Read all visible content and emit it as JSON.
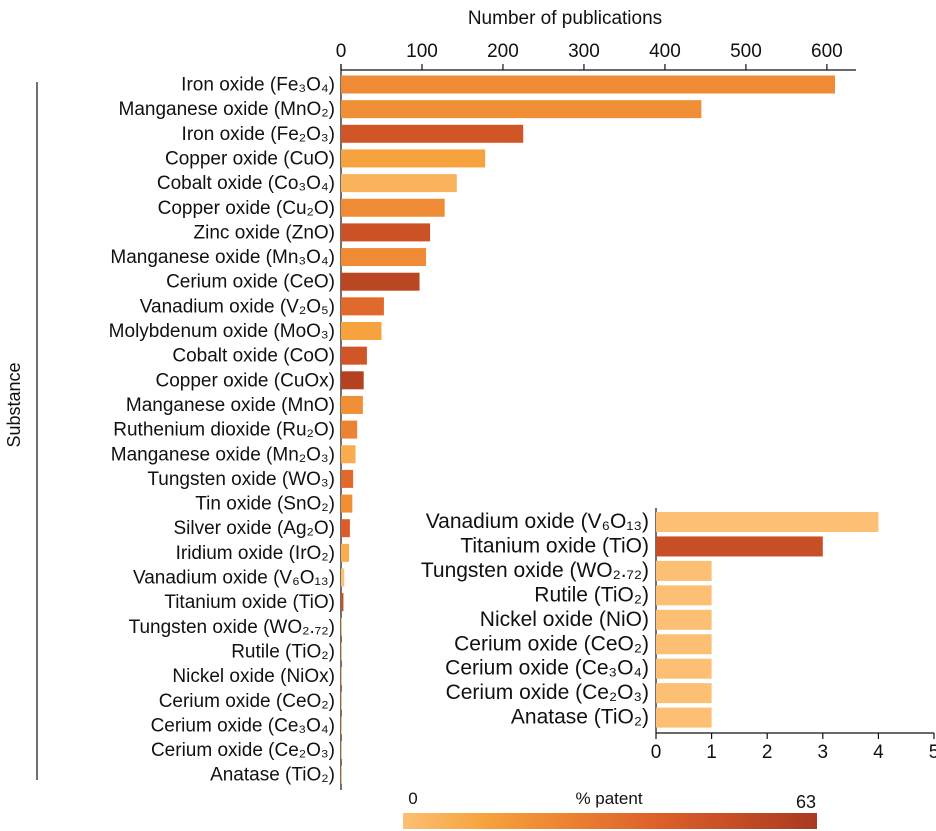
{
  "chart_data": [
    {
      "type": "bar",
      "orientation": "horizontal",
      "title": "",
      "xlabel": "Number of publications",
      "ylabel": "Substance",
      "xlim": [
        0,
        640
      ],
      "xticks": [
        0,
        100,
        200,
        300,
        400,
        500,
        600
      ],
      "x_axis_position": "top",
      "categories": [
        "Iron oxide (Fe₃O₄)",
        "Manganese oxide (MnO₂)",
        "Iron oxide (Fe₂O₃)",
        "Copper oxide (CuO)",
        "Cobalt oxide (Co₃O₄)",
        "Copper oxide (Cu₂O)",
        "Zinc oxide (ZnO)",
        "Manganese oxide (Mn₃O₄)",
        "Cerium oxide (CeO)",
        "Vanadium oxide (V₂O₅)",
        "Molybdenum oxide (MoO₃)",
        "Cobalt oxide (CoO)",
        "Copper oxide (CuOx)",
        "Manganese oxide (MnO)",
        "Ruthenium dioxide (Ru₂O)",
        "Manganese oxide (Mn₂O₃)",
        "Tungsten oxide (WO₃)",
        "Tin oxide (SnO₂)",
        "Silver oxide (Ag₂O)",
        "Iridium oxide (IrO₂)",
        "Vanadium oxide (V₆O₁₃)",
        "Titanium oxide (TiO)",
        "Tungsten oxide (WO₂.₇₂)",
        "Rutile (TiO₂)",
        "Nickel oxide (NiOx)",
        "Cerium oxide (CeO₂)",
        "Cerium oxide (Ce₃O₄)",
        "Cerium oxide (Ce₂O₃)",
        "Anatase (TiO₂)"
      ],
      "values": [
        610,
        445,
        225,
        178,
        143,
        128,
        110,
        105,
        97,
        53,
        50,
        32,
        28,
        27,
        20,
        18,
        15,
        14,
        11,
        10,
        4,
        3,
        1,
        1,
        1,
        1,
        1,
        1,
        1
      ],
      "percent_patent": [
        22,
        20,
        45,
        12,
        5,
        22,
        48,
        22,
        55,
        35,
        12,
        45,
        58,
        20,
        25,
        8,
        35,
        20,
        40,
        8,
        0,
        50,
        0,
        0,
        0,
        0,
        0,
        0,
        0
      ],
      "grid": false
    },
    {
      "type": "bar",
      "orientation": "horizontal",
      "title": "",
      "xlabel": "",
      "xlim": [
        0,
        5
      ],
      "xticks": [
        0,
        1,
        2,
        3,
        4,
        5
      ],
      "x_axis_position": "bottom",
      "categories": [
        "Vanadium oxide (V₆O₁₃)",
        "Titanium oxide (TiO)",
        "Tungsten oxide (WO₂.₇₂)",
        "Rutile (TiO₂)",
        "Nickel oxide (NiO)",
        "Cerium oxide (CeO₂)",
        "Cerium oxide (Ce₃O₄)",
        "Cerium oxide (Ce₂O₃)",
        "Anatase (TiO₂)"
      ],
      "values": [
        4,
        3,
        1,
        1,
        1,
        1,
        1,
        1,
        1
      ],
      "percent_patent": [
        0,
        50,
        0,
        0,
        0,
        0,
        0,
        0,
        0
      ],
      "grid": false
    }
  ],
  "colorbar": {
    "label": "% patent",
    "min_label": "0",
    "max_label": "63",
    "min": 0,
    "max": 63,
    "colors": [
      "#fdbf73",
      "#f6a23c",
      "#ec8232",
      "#de6229",
      "#c64d25",
      "#a83a20"
    ]
  }
}
